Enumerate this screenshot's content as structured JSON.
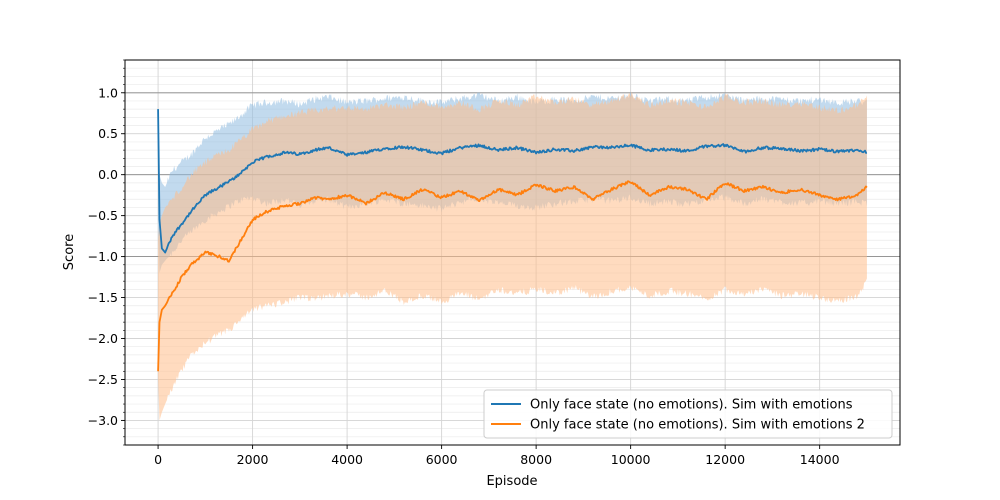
{
  "chart_data": {
    "type": "line",
    "title": "",
    "xlabel": "Episode",
    "ylabel": "Score",
    "xlim": [
      -700,
      15700
    ],
    "ylim": [
      -3.3,
      1.4
    ],
    "xticks": [
      0,
      2000,
      4000,
      6000,
      8000,
      10000,
      12000,
      14000
    ],
    "xtick_labels": [
      "0",
      "2000",
      "4000",
      "6000",
      "8000",
      "10000",
      "12000",
      "14000"
    ],
    "yticks": [
      -3.0,
      -2.5,
      -2.0,
      -1.5,
      -1.0,
      -0.5,
      0.0,
      0.5,
      1.0
    ],
    "ytick_labels": [
      "−3.0",
      "−2.5",
      "−2.0",
      "−1.5",
      "−1.0",
      "−0.5",
      "0.0",
      "0.5",
      "1.0"
    ],
    "grid": true,
    "minor_grid": true,
    "reference_lines_y": [
      -1.0,
      0.0,
      1.0
    ],
    "legend_position": "lower-right",
    "series": [
      {
        "name": "Only face state (no emotions). Sim with emotions",
        "color": "#1f77b4",
        "band_color": "#8fbbe0",
        "x": [
          0,
          30,
          80,
          150,
          300,
          500,
          700,
          1000,
          1300,
          1600,
          1800,
          2000,
          2300,
          2700,
          3000,
          3300,
          3600,
          4000,
          4400,
          4800,
          5200,
          5600,
          6000,
          6400,
          6800,
          7200,
          7600,
          8000,
          8400,
          8800,
          9200,
          9600,
          10000,
          10400,
          10800,
          11200,
          11600,
          12000,
          12400,
          12800,
          13200,
          13600,
          14000,
          14400,
          14800,
          15000
        ],
        "y": [
          0.8,
          -0.55,
          -0.9,
          -0.95,
          -0.75,
          -0.6,
          -0.45,
          -0.25,
          -0.15,
          -0.05,
          0.05,
          0.15,
          0.22,
          0.27,
          0.25,
          0.3,
          0.33,
          0.24,
          0.27,
          0.32,
          0.34,
          0.3,
          0.26,
          0.33,
          0.36,
          0.3,
          0.33,
          0.27,
          0.31,
          0.29,
          0.34,
          0.33,
          0.36,
          0.3,
          0.31,
          0.29,
          0.35,
          0.36,
          0.28,
          0.33,
          0.32,
          0.29,
          0.31,
          0.28,
          0.3,
          0.28
        ],
        "y_lower": [
          -0.6,
          -1.2,
          -1.1,
          -1.05,
          -0.95,
          -0.8,
          -0.7,
          -0.55,
          -0.45,
          -0.35,
          -0.3,
          -0.28,
          -0.35,
          -0.3,
          -0.38,
          -0.32,
          -0.3,
          -0.4,
          -0.35,
          -0.3,
          -0.35,
          -0.38,
          -0.42,
          -0.33,
          -0.3,
          -0.35,
          -0.38,
          -0.4,
          -0.35,
          -0.33,
          -0.3,
          -0.32,
          -0.28,
          -0.35,
          -0.33,
          -0.36,
          -0.3,
          -0.28,
          -0.35,
          -0.3,
          -0.33,
          -0.35,
          -0.32,
          -0.35,
          -0.33,
          -0.35
        ],
        "y_upper": [
          0.82,
          0.0,
          -0.1,
          -0.15,
          0.05,
          0.15,
          0.25,
          0.45,
          0.55,
          0.65,
          0.75,
          0.85,
          0.88,
          0.9,
          0.86,
          0.92,
          0.95,
          0.88,
          0.9,
          0.93,
          0.95,
          0.9,
          0.88,
          0.93,
          0.97,
          0.9,
          0.95,
          0.88,
          0.92,
          0.9,
          0.95,
          0.93,
          0.97,
          0.9,
          0.92,
          0.9,
          0.95,
          0.97,
          0.9,
          0.93,
          0.92,
          0.9,
          0.92,
          0.88,
          0.9,
          0.88
        ]
      },
      {
        "name": "Only face state (no emotions). Sim with emotions 2",
        "color": "#ff7f0e",
        "band_color": "#ffbe8a",
        "x": [
          0,
          30,
          80,
          150,
          300,
          500,
          700,
          1000,
          1300,
          1500,
          1700,
          2000,
          2300,
          2700,
          3000,
          3300,
          3600,
          4000,
          4400,
          4800,
          5200,
          5600,
          6000,
          6400,
          6800,
          7200,
          7600,
          8000,
          8400,
          8800,
          9200,
          9600,
          10000,
          10400,
          10800,
          11200,
          11600,
          12000,
          12400,
          12800,
          13200,
          13600,
          14000,
          14400,
          14800,
          15000
        ],
        "y": [
          -2.4,
          -1.8,
          -1.65,
          -1.6,
          -1.45,
          -1.25,
          -1.1,
          -0.95,
          -1.0,
          -1.05,
          -0.85,
          -0.55,
          -0.45,
          -0.38,
          -0.35,
          -0.28,
          -0.3,
          -0.25,
          -0.35,
          -0.22,
          -0.3,
          -0.18,
          -0.28,
          -0.2,
          -0.32,
          -0.18,
          -0.25,
          -0.12,
          -0.2,
          -0.15,
          -0.3,
          -0.18,
          -0.08,
          -0.25,
          -0.15,
          -0.18,
          -0.3,
          -0.1,
          -0.2,
          -0.15,
          -0.22,
          -0.18,
          -0.25,
          -0.3,
          -0.25,
          -0.15
        ],
        "y_lower": [
          -2.5,
          -3.0,
          -2.9,
          -2.8,
          -2.6,
          -2.4,
          -2.2,
          -2.05,
          -1.95,
          -1.9,
          -1.8,
          -1.65,
          -1.6,
          -1.55,
          -1.5,
          -1.52,
          -1.48,
          -1.45,
          -1.5,
          -1.42,
          -1.55,
          -1.48,
          -1.55,
          -1.45,
          -1.52,
          -1.4,
          -1.45,
          -1.4,
          -1.45,
          -1.38,
          -1.5,
          -1.42,
          -1.38,
          -1.48,
          -1.42,
          -1.45,
          -1.52,
          -1.4,
          -1.45,
          -1.4,
          -1.48,
          -1.45,
          -1.5,
          -1.55,
          -1.48,
          -1.3
        ],
        "y_upper": [
          -0.8,
          -0.6,
          -0.5,
          -0.4,
          -0.3,
          -0.15,
          0.0,
          0.15,
          0.25,
          0.3,
          0.4,
          0.55,
          0.65,
          0.72,
          0.75,
          0.78,
          0.8,
          0.82,
          0.8,
          0.85,
          0.82,
          0.88,
          0.83,
          0.88,
          0.8,
          0.9,
          0.85,
          0.95,
          0.88,
          0.92,
          0.85,
          0.9,
          0.98,
          0.85,
          0.9,
          0.88,
          0.82,
          0.95,
          0.88,
          0.9,
          0.85,
          0.88,
          0.82,
          0.78,
          0.85,
          0.95
        ]
      }
    ]
  }
}
